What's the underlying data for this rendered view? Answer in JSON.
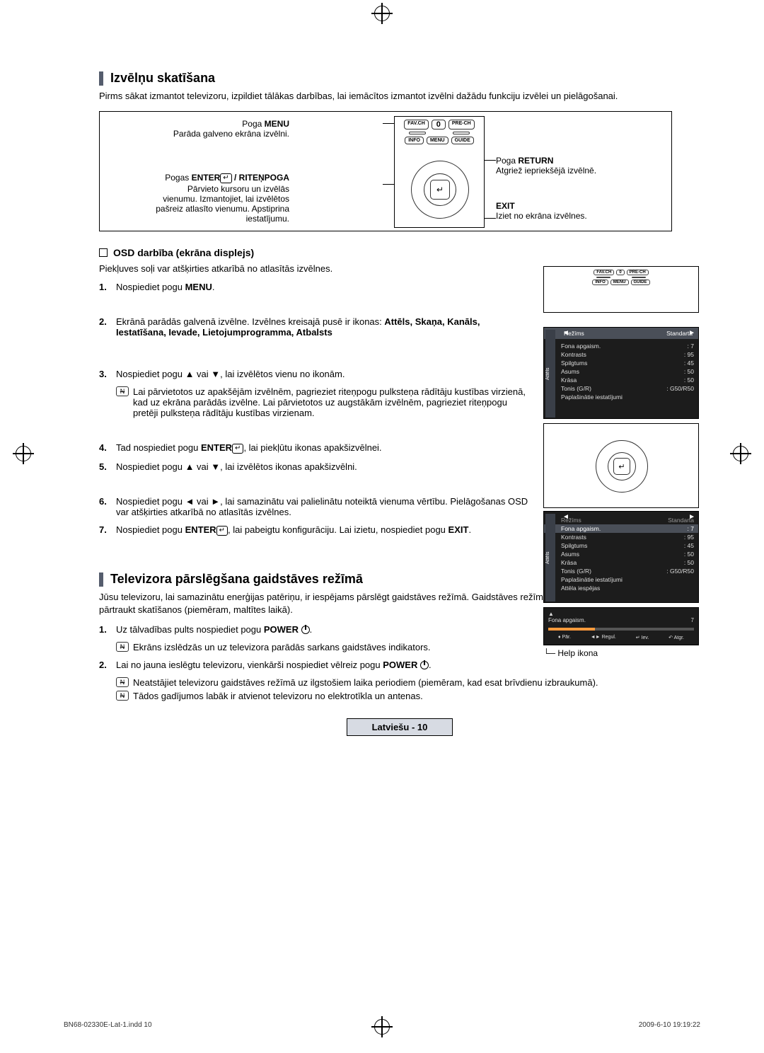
{
  "reg_marks": true,
  "section1": {
    "title": "Izvēlņu skatīšana",
    "intro": "Pirms sākat izmantot televizoru, izpildiet tālākas darbības, lai iemācītos izmantot izvēlni dažādu funkciju izvēlei un pielāgošanai.",
    "remote": {
      "menu_btn": {
        "label1": "Poga",
        "label2": "MENU",
        "desc": "Parāda galveno ekrāna izvēlni."
      },
      "enter_btn": {
        "label1": "Pogas",
        "label2": "ENTER",
        "label3": " / RITEŅPOGA",
        "desc1": "Pārvieto kursoru un izvēlās",
        "desc2": "vienumu. Izmantojiet, lai izvēlētos",
        "desc3": "pašreiz atlasīto vienumu. Apstiprina",
        "desc4": "iestatījumu."
      },
      "return_btn": {
        "label1": "Poga",
        "label2": "RETURN",
        "desc": "Atgriež iepriekšējā izvēlnē."
      },
      "exit_btn": {
        "label1": "EXIT",
        "desc": "Iziet no ekrāna izvēlnes."
      },
      "btns": {
        "favch": "FAV.CH",
        "zero": "0",
        "prech": "PRE-CH",
        "info": "INFO",
        "menu": "MENU",
        "guide": "GUIDE"
      }
    },
    "osd": {
      "heading": "OSD darbība (ekrāna displejs)",
      "intro": "Piekļuves soļi var atšķirties atkarībā no atlasītās izvēlnes.",
      "step1_pre": "Nospiediet pogu ",
      "step1_bold": "MENU",
      "step1_post": ".",
      "step2_pre": "Ekrānā parādās galvenā izvēlne. Izvēlnes kreisajā pusē ir ikonas: ",
      "step2_bold": "Attēls, Skaņa, Kanāls, Iestatīšana, Ievade, Lietojumprogramma, Atbalsts",
      "step3": "Nospiediet pogu ▲ vai ▼, lai izvēlētos vienu no ikonām.",
      "step3_note": "Lai pārvietotos uz apakšējām izvēlnēm, pagrieziet riteņpogu pulksteņa rādītāju kustības virzienā, kad uz ekrāna parādās izvēlne. Lai pārvietotos uz augstākām izvēlnēm, pagrieziet riteņpogu pretēji pulksteņa rādītāju kustības virzienam.",
      "step4_pre": "Tad nospiediet pogu ",
      "step4_bold": "ENTER",
      "step4_post": ", lai piekļūtu ikonas apakšizvēlnei.",
      "step5": "Nospiediet pogu ▲ vai ▼, lai izvēlētos ikonas apakšizvēlni.",
      "step6": "Nospiediet pogu ◄ vai ►, lai samazinātu vai palielinātu noteiktā vienuma vērtību. Pielāgošanas OSD var atšķirties atkarībā no atlasītās izvēlnes.",
      "step7_pre": "Nospiediet pogu ",
      "step7_bold": "ENTER",
      "step7_mid": ", lai pabeigtu konfigurāciju. Lai izietu, nospiediet pogu ",
      "step7_bold2": "EXIT",
      "step7_post": "."
    },
    "menu_panel": {
      "tab": "Attēls",
      "mode_label": "Režīms",
      "mode_value": "Standarta",
      "rows": [
        {
          "k": "Fona apgaism.",
          "v": ": 7"
        },
        {
          "k": "Kontrasts",
          "v": ": 95"
        },
        {
          "k": "Spilgtums",
          "v": ": 45"
        },
        {
          "k": "Asums",
          "v": ": 50"
        },
        {
          "k": "Krāsa",
          "v": ": 50"
        },
        {
          "k": "Tonis (G/R)",
          "v": ": G50/R50"
        },
        {
          "k": "Paplašinātie iestatījumi",
          "v": ""
        }
      ],
      "highlight_index_A": 0,
      "extra_rows_B": [
        {
          "k": "Attēla iespējas",
          "v": ""
        }
      ],
      "highlight_row_B": 0
    },
    "slider": {
      "up": "▲",
      "title": "Fona apgaism.",
      "value": "7",
      "fill_pct": 32,
      "b1": "Pār.",
      "b2": "Regul.",
      "b3": "Iev.",
      "b4": "Atgr."
    },
    "help_label": "Help ikona"
  },
  "section2": {
    "title": "Televizora pārslēgšana gaidstāves režīmā",
    "intro": "Jūsu televizoru, lai samazinātu enerģijas patēriņu, ir iespējams pārslēgt gaidstāves režīmā. Gaidstāves režīms ir noderīgs, ja vēlaties īslaicīgi pārtraukt skatīšanos (piemēram, maltītes laikā).",
    "step1_pre": "Uz tālvadības pults nospiediet pogu ",
    "step1_bold": "POWER",
    "step1_note": "Ekrāns izslēdzās un uz televizora parādās sarkans gaidstāves indikators.",
    "step2_pre": "Lai no jauna ieslēgtu televizoru, vienkārši nospiediet vēlreiz pogu ",
    "step2_bold": "POWER",
    "step2_note1": "Neatstājiet televizoru gaidstāves režīmā uz ilgstošiem laika periodiem (piemēram, kad esat brīvdienu izbraukumā).",
    "step2_note2": "Tādos gadījumos labāk ir atvienot televizoru no elektrotīkla un antenas."
  },
  "footer": {
    "lang": "Latviešu - 10"
  },
  "print": {
    "left": "BN68-02330E-Lat-1.indd   10",
    "right": "2009-6-10   19:19:22"
  },
  "colors": {
    "bar": "#555d6d",
    "footer_bg": "#d7dbe3",
    "panel_bg": "#1c1c1c",
    "panel_tab": "#3a3f48",
    "panel_hi": "#4a4f58",
    "slider_fill": "#ff9a3c"
  }
}
